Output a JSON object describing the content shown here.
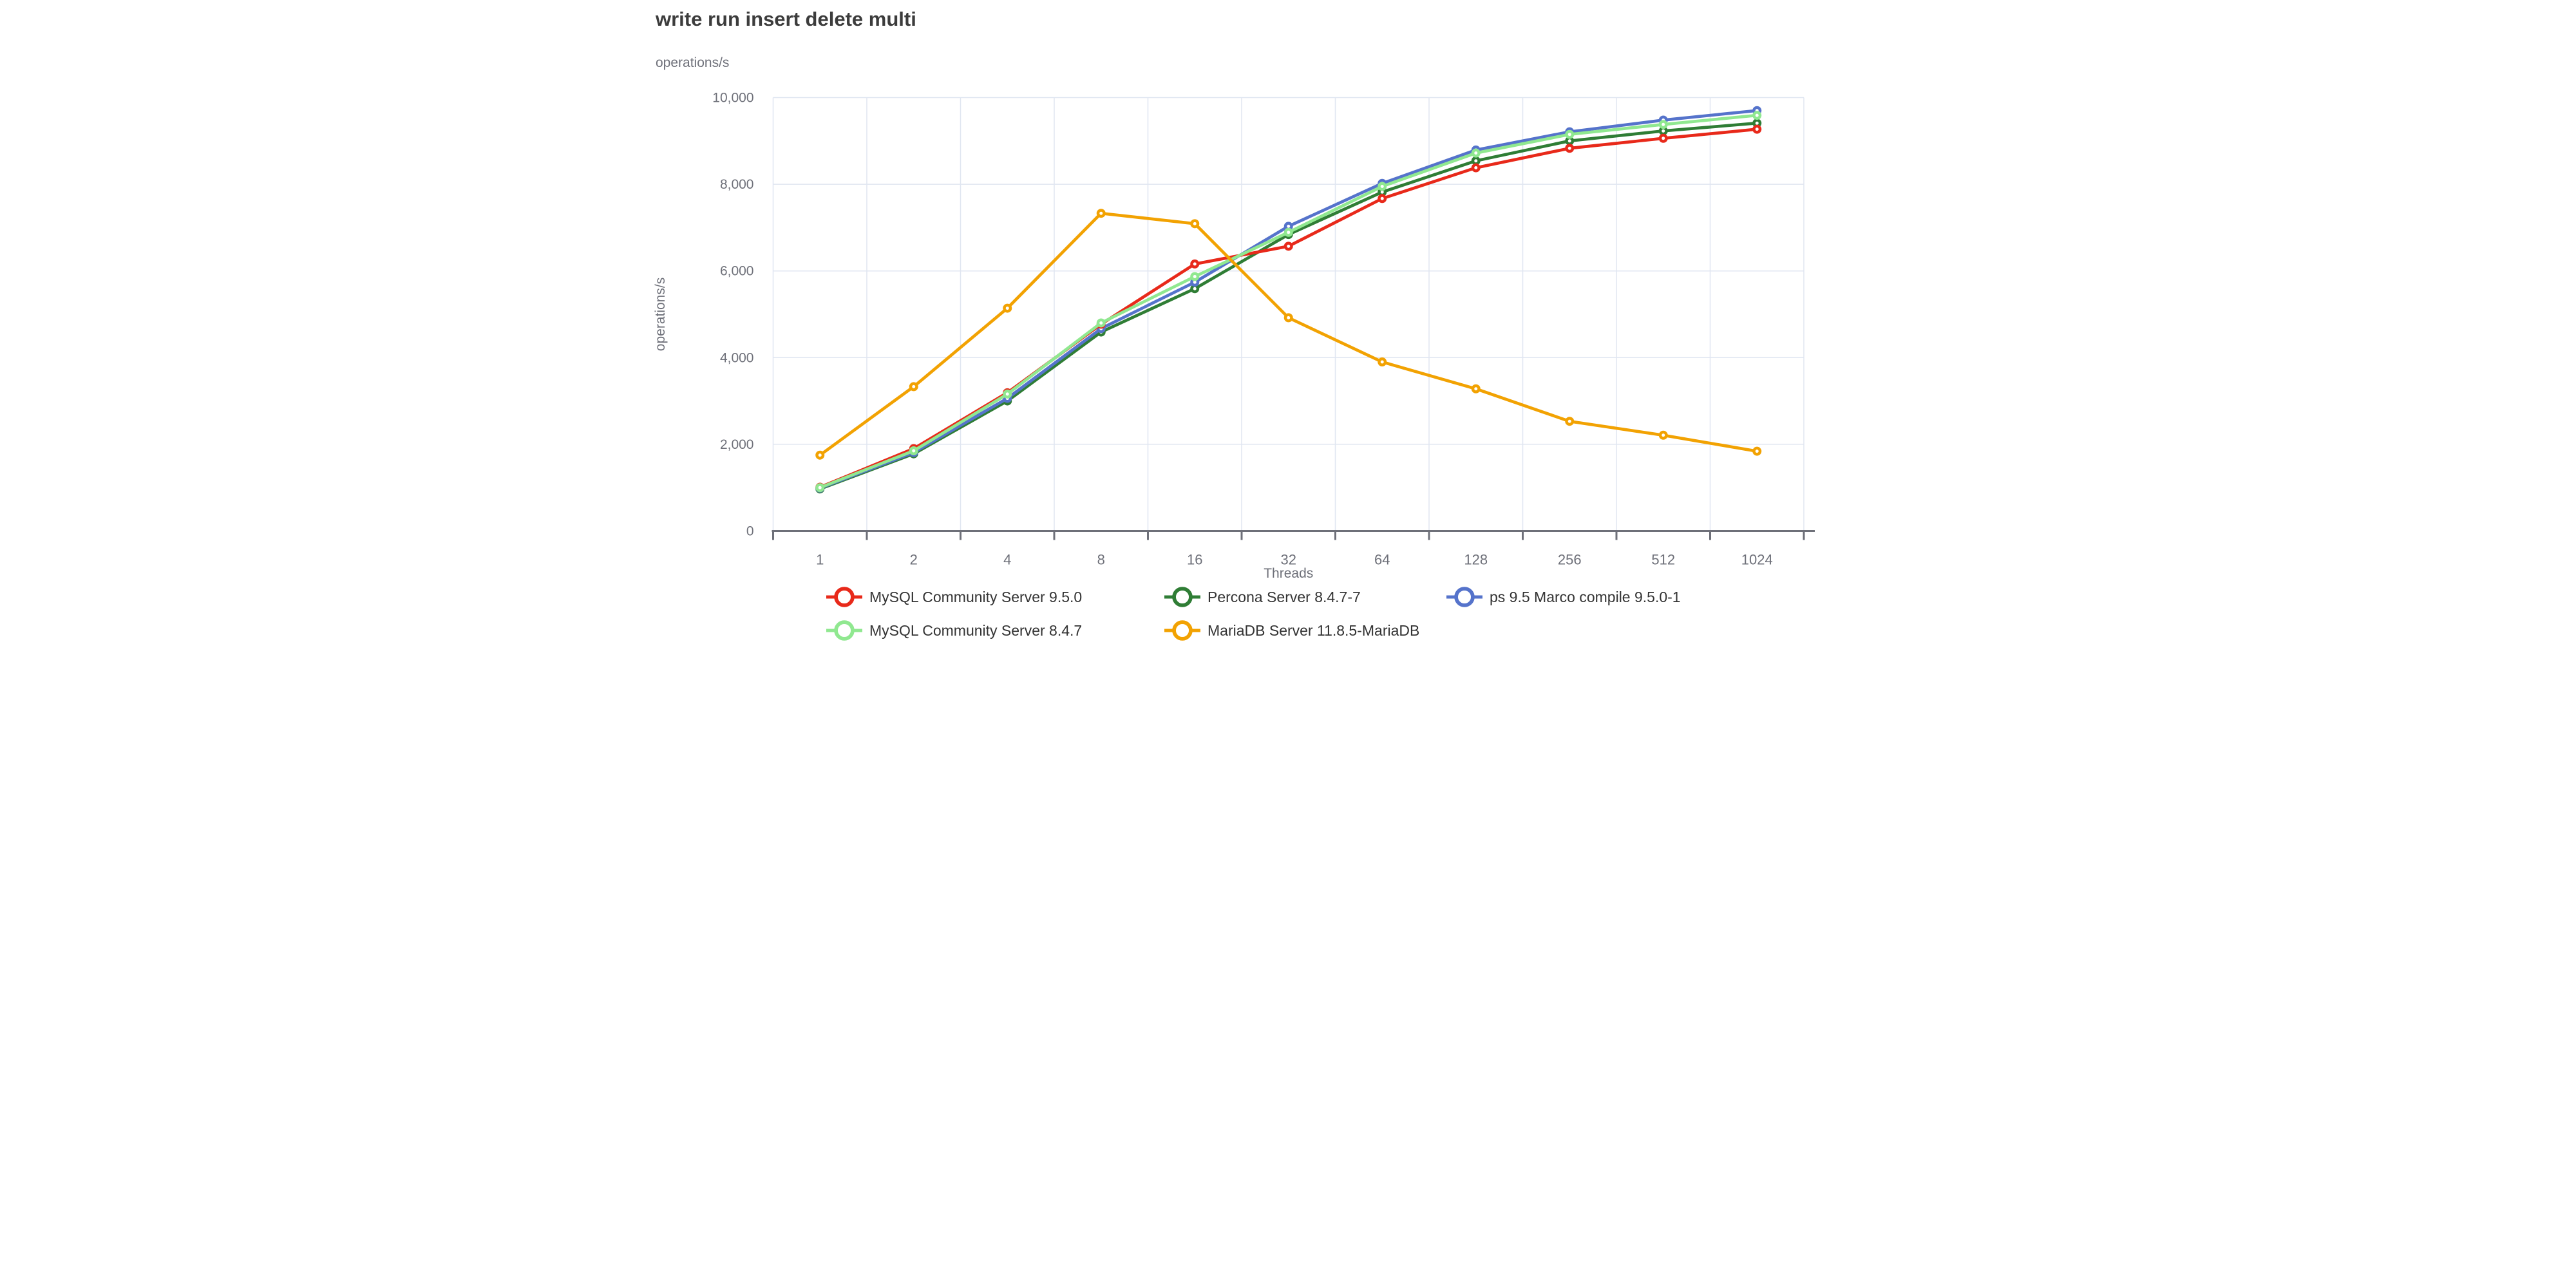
{
  "title": "write run insert delete multi",
  "chart_data": {
    "type": "line",
    "title": "write run insert delete multi",
    "xlabel": "Threads",
    "ylabel": "operations/s",
    "ylim": [
      0,
      10000
    ],
    "y_tick_interval": 2000,
    "y_tick_labels": [
      "0",
      "2,000",
      "4,000",
      "6,000",
      "8,000",
      "10,000"
    ],
    "grid": true,
    "legend_position": "bottom",
    "categories": [
      "1",
      "2",
      "4",
      "8",
      "16",
      "32",
      "64",
      "128",
      "256",
      "512",
      "1024"
    ],
    "series": [
      {
        "name": "MySQL Community Server 9.5.0",
        "color": "#e8291a",
        "values": [
          1010,
          1900,
          3190,
          4770,
          6160,
          6570,
          7670,
          8380,
          8830,
          9060,
          9270
        ]
      },
      {
        "name": "Percona Server 8.4.7-7",
        "color": "#2f7d35",
        "values": [
          970,
          1780,
          3000,
          4590,
          5590,
          6840,
          7820,
          8540,
          9000,
          9230,
          9410
        ]
      },
      {
        "name": "ps 9.5 Marco compile 9.5.0-1",
        "color": "#5573cb",
        "values": [
          990,
          1810,
          3060,
          4670,
          5740,
          7030,
          8020,
          8790,
          9210,
          9480,
          9700
        ]
      },
      {
        "name": "MySQL Community Server 8.4.7",
        "color": "#90e890",
        "values": [
          1000,
          1850,
          3160,
          4800,
          5870,
          6890,
          7950,
          8720,
          9150,
          9380,
          9590
        ]
      },
      {
        "name": "MariaDB Server 11.8.5-MariaDB",
        "color": "#f2a202",
        "values": [
          1750,
          3330,
          5140,
          7330,
          7090,
          4920,
          3900,
          3280,
          2530,
          2210,
          1840
        ]
      }
    ],
    "draw_order": [
      1,
      2,
      0,
      3,
      4
    ],
    "legend_rows": [
      [
        0,
        1,
        2
      ],
      [
        3,
        4
      ]
    ]
  }
}
